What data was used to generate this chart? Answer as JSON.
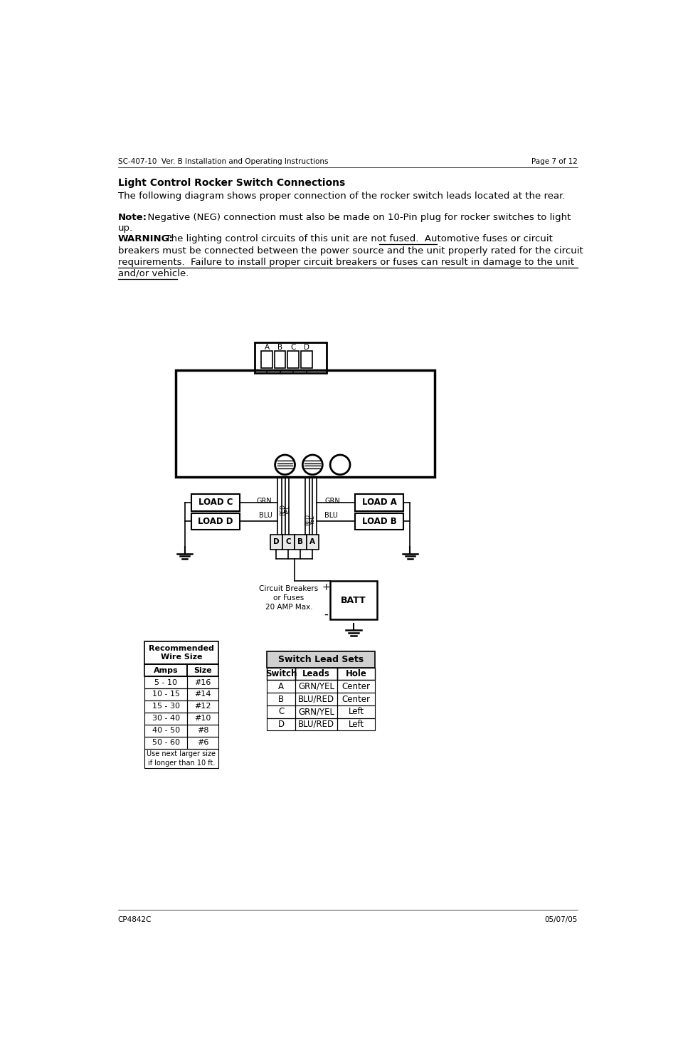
{
  "header_left": "SC-407-10  Ver. B Installation and Operating Instructions",
  "header_right": "Page 7 of 12",
  "footer_left": "CP4842C",
  "footer_right": "05/07/05",
  "title": "Light Control Rocker Switch Connections",
  "para1": "The following diagram shows proper connection of the rocker switch leads located at the rear.",
  "note_label": "Note:",
  "note_text1": "  Negative (NEG) connection must also be made on 10-Pin plug for rocker switches to light",
  "note_text2": "up.",
  "warning_label": "WARNING:",
  "warn_line1": "  The lighting control circuits of this unit are not fused.  Automotive fuses or circuit",
  "warn_line2": "breakers must be connected between the power source and the unit properly rated for the circuit",
  "warn_line3": "requirements.  Failure to install proper circuit breakers or fuses can result in damage to the unit",
  "warn_line4": "and/or vehicle.",
  "wire_table_title": "Recommended\nWire Size",
  "wire_headers": [
    "Amps",
    "Size"
  ],
  "wire_rows": [
    [
      "5 - 10",
      "#16"
    ],
    [
      "10 - 15",
      "#14"
    ],
    [
      "15 - 30",
      "#12"
    ],
    [
      "30 - 40",
      "#10"
    ],
    [
      "40 - 50",
      "#8"
    ],
    [
      "50 - 60",
      "#6"
    ]
  ],
  "wire_note": "Use next larger size\nif longer than 10 ft.",
  "switch_table_title": "Switch Lead Sets",
  "switch_headers": [
    "Switch",
    "Leads",
    "Hole"
  ],
  "switch_rows": [
    [
      "A",
      "GRN/YEL",
      "Center"
    ],
    [
      "B",
      "BLU/RED",
      "Center"
    ],
    [
      "C",
      "GRN/YEL",
      "Left"
    ],
    [
      "D",
      "BLU/RED",
      "Left"
    ]
  ],
  "bg_color": "#ffffff",
  "text_color": "#000000"
}
